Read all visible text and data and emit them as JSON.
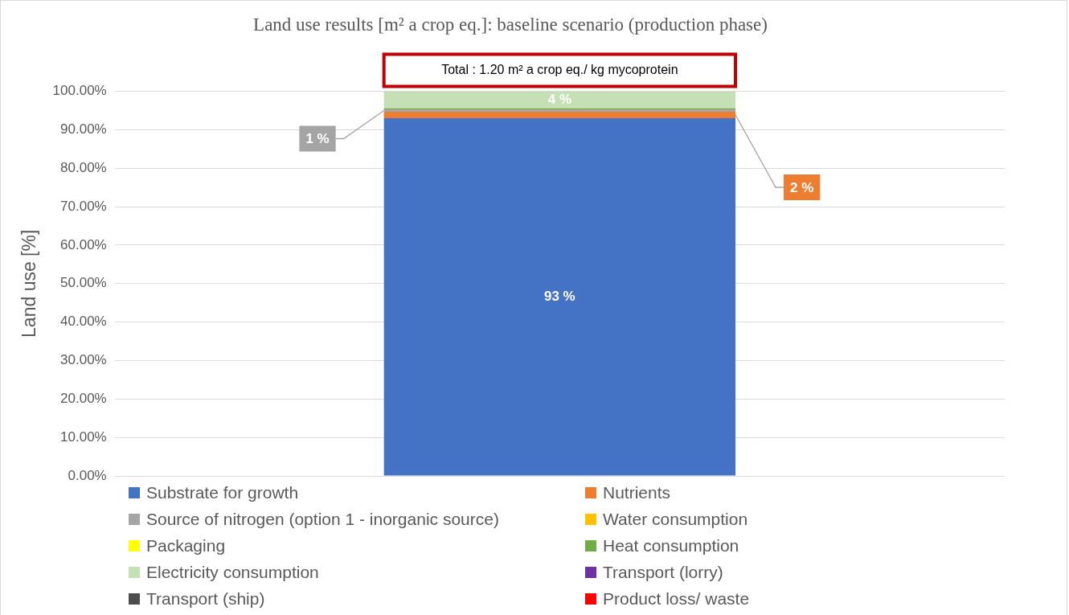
{
  "chart_data": {
    "type": "bar",
    "title": "Land use results [m² a crop eq.]: baseline scenario (production phase)",
    "ylabel": "Land use [%]",
    "categories": [
      null
    ],
    "stacked": true,
    "grid": "y",
    "legend": "bottom",
    "ylim": [
      0,
      100
    ],
    "yticks": [
      {
        "value": 0,
        "label": "0.00%"
      },
      {
        "value": 10,
        "label": "10.00%"
      },
      {
        "value": 20,
        "label": "20.00%"
      },
      {
        "value": 30,
        "label": "30.00%"
      },
      {
        "value": 40,
        "label": "40.00%"
      },
      {
        "value": 50,
        "label": "50.00%"
      },
      {
        "value": 60,
        "label": "60.00%"
      },
      {
        "value": 70,
        "label": "70.00%"
      },
      {
        "value": 80,
        "label": "80.00%"
      },
      {
        "value": 90,
        "label": "90.00%"
      },
      {
        "value": 100,
        "label": "100.00%"
      }
    ],
    "annotations": [
      "Total : 1.20 m² a crop eq./ kg mycoprotein"
    ],
    "series": [
      {
        "name": "Substrate for growth",
        "color": "#4472c4",
        "values": [
          93
        ],
        "value_labels": [
          "93 %"
        ]
      },
      {
        "name": "Nutrients",
        "color": "#ed7d31",
        "values": [
          1.7
        ],
        "value_labels": [
          "2 %"
        ]
      },
      {
        "name": "Source of nitrogen (option 1 - inorganic source)",
        "color": "#a5a5a5",
        "values": [
          0.6
        ],
        "value_labels": [
          "1 %"
        ]
      },
      {
        "name": "Water consumption",
        "color": "#ffc000",
        "values": [
          0
        ]
      },
      {
        "name": "Packaging",
        "color": "#ffff00",
        "values": [
          0
        ]
      },
      {
        "name": "Heat consumption",
        "color": "#70ad47",
        "values": [
          0.3
        ]
      },
      {
        "name": "Electricity consumption",
        "color": "#c5e0b4",
        "values": [
          4.4
        ],
        "value_labels": [
          "4 %"
        ]
      },
      {
        "name": "Transport (lorry)",
        "color": "#7030a0",
        "values": [
          0
        ]
      },
      {
        "name": "Transport (ship)",
        "color": "#4d4d4d",
        "values": [
          0
        ]
      },
      {
        "name": "Product loss/ waste",
        "color": "#ff0000",
        "values": [
          0
        ]
      }
    ]
  }
}
